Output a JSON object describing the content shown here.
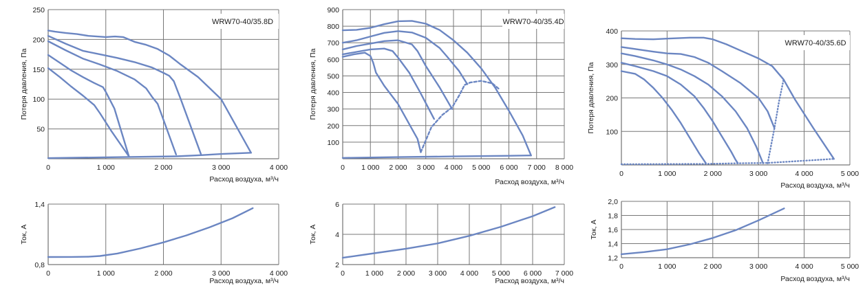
{
  "colors": {
    "curve": "#6b86c2",
    "grid": "#777777",
    "label_bg": "#ffffff"
  },
  "chart_data": [
    {
      "type": "line",
      "role": "pressure",
      "model": "WRW70-40/35.8D",
      "xlabel": "Расход воздуха, м³/ч",
      "ylabel": "Потеря давления, Па",
      "xlim": [
        0,
        4000
      ],
      "ylim": [
        0,
        250
      ],
      "grid": true,
      "xticks": [
        0,
        1000,
        2000,
        3000,
        4000
      ],
      "xtick_labels": [
        "0",
        "1 000",
        "2 000",
        "3 000",
        "4 000"
      ],
      "yticks": [
        50,
        100,
        150,
        200,
        250
      ],
      "ytick_labels": [
        "50",
        "100",
        "150",
        "200",
        "250"
      ],
      "series": [
        {
          "x": [
            0,
            120,
            300,
            500,
            700,
            1000,
            1160,
            1300,
            1400,
            1500,
            1700,
            1900,
            2100,
            2300,
            2600,
            3000,
            3520
          ],
          "y": [
            215,
            213,
            211,
            209,
            206,
            204,
            205,
            204,
            200,
            196,
            191,
            184,
            173,
            158,
            137,
            100,
            10
          ]
        },
        {
          "x": [
            0,
            300,
            600,
            900,
            1200,
            1500,
            1800,
            2000,
            2100,
            2180,
            2300,
            2650
          ],
          "y": [
            206,
            193,
            181,
            175,
            169,
            162,
            153,
            144,
            139,
            130,
            100,
            8
          ]
        },
        {
          "x": [
            0,
            300,
            600,
            900,
            1200,
            1500,
            1700,
            1800,
            1900,
            2220
          ],
          "y": [
            197,
            182,
            168,
            158,
            147,
            133,
            118,
            104,
            92,
            7
          ]
        },
        {
          "x": [
            0,
            200,
            400,
            600,
            800,
            950,
            1000,
            1150,
            1400
          ],
          "y": [
            174,
            161,
            148,
            137,
            127,
            120,
            112,
            84,
            4
          ]
        },
        {
          "x": [
            0,
            200,
            400,
            600,
            700,
            800,
            900,
            1100,
            1400
          ],
          "y": [
            152,
            137,
            121,
            106,
            98,
            90,
            76,
            46,
            4
          ]
        },
        {
          "x": [
            0,
            1400,
            2220,
            2650,
            3000,
            3520
          ],
          "y": [
            1,
            3,
            4,
            6,
            8,
            10
          ]
        }
      ]
    },
    {
      "type": "line",
      "role": "current",
      "xlabel": "Расход воздуха, м³/ч",
      "ylabel": "Ток, А",
      "xlim": [
        0,
        4000
      ],
      "ylim": [
        0.8,
        1.4
      ],
      "grid": true,
      "xticks": [
        0,
        1000,
        2000,
        3000,
        4000
      ],
      "xtick_labels": [
        "0",
        "1 000",
        "2 000",
        "3 000",
        "4 000"
      ],
      "yticks": [
        0.8,
        1.4
      ],
      "ytick_labels": [
        "0,8",
        "1,4"
      ],
      "series": [
        {
          "x": [
            0,
            400,
            700,
            900,
            1200,
            1600,
            2000,
            2400,
            2800,
            3200,
            3550
          ],
          "y": [
            0.875,
            0.876,
            0.878,
            0.885,
            0.91,
            0.96,
            1.02,
            1.09,
            1.17,
            1.26,
            1.36
          ]
        }
      ]
    },
    {
      "type": "line",
      "role": "pressure",
      "model": "WRW70-40/35.4D",
      "xlabel": "Расход воздуха, м³/ч",
      "ylabel": "Потеря давления, Па",
      "xlim": [
        0,
        8000
      ],
      "ylim": [
        0,
        900
      ],
      "grid": true,
      "xticks": [
        0,
        1000,
        2000,
        3000,
        4000,
        5000,
        6000,
        7000,
        8000
      ],
      "xtick_labels": [
        "0",
        "1 000",
        "2 000",
        "3 000",
        "4 000",
        "5 000",
        "6 000",
        "7 000",
        "8 000"
      ],
      "yticks": [
        100,
        200,
        300,
        400,
        500,
        600,
        700,
        800,
        900
      ],
      "ytick_labels": [
        "100",
        "200",
        "300",
        "400",
        "500",
        "600",
        "700",
        "800",
        "900"
      ],
      "series": [
        {
          "x": [
            0,
            500,
            1000,
            1500,
            2000,
            2500,
            3000,
            3500,
            4000,
            4500,
            5000,
            5500,
            6000,
            6500,
            6800
          ],
          "y": [
            775,
            778,
            790,
            812,
            830,
            832,
            815,
            777,
            715,
            640,
            545,
            430,
            290,
            140,
            20
          ]
        },
        {
          "x": [
            0,
            500,
            1000,
            1500,
            2000,
            2500,
            3000,
            3500,
            3800,
            4000,
            4200,
            4500
          ],
          "y": [
            700,
            715,
            738,
            760,
            770,
            762,
            730,
            668,
            610,
            570,
            530,
            450
          ]
        },
        {
          "x": [
            0,
            500,
            1000,
            1500,
            2000,
            2500,
            2700,
            3000,
            3500,
            3950
          ],
          "y": [
            660,
            680,
            695,
            710,
            715,
            690,
            650,
            560,
            430,
            300
          ]
        },
        {
          "x": [
            0,
            500,
            1000,
            1500,
            1800,
            2000,
            2400,
            2800,
            3300
          ],
          "y": [
            630,
            645,
            660,
            665,
            650,
            610,
            520,
            400,
            240
          ]
        },
        {
          "x": [
            0,
            400,
            800,
            1000,
            1100,
            1200,
            1500,
            2000,
            2500,
            2700,
            2820
          ],
          "y": [
            615,
            630,
            640,
            620,
            580,
            520,
            440,
            330,
            180,
            120,
            40
          ]
        },
        {
          "x": [
            2820,
            3200,
            3600,
            3950,
            4200,
            4400,
            4600,
            5000,
            5400,
            5650
          ],
          "y": [
            40,
            190,
            265,
            310,
            380,
            445,
            460,
            470,
            455,
            420
          ],
          "dash": [
            0.46,
            0.54
          ]
        },
        {
          "x": [
            0,
            2000,
            4000,
            6000,
            6800
          ],
          "y": [
            5,
            10,
            14,
            18,
            20
          ]
        }
      ]
    },
    {
      "type": "line",
      "role": "current",
      "xlabel": "Расход воздуха, м³/ч",
      "ylabel": "Ток, А",
      "xlim": [
        0,
        7000
      ],
      "ylim": [
        2,
        6
      ],
      "grid": true,
      "xticks": [
        0,
        1000,
        2000,
        3000,
        4000,
        5000,
        6000,
        7000
      ],
      "xtick_labels": [
        "0",
        "1 000",
        "2 000",
        "3 000",
        "4 000",
        "5 000",
        "6 000",
        "7 000"
      ],
      "yticks": [
        2,
        4,
        6
      ],
      "ytick_labels": [
        "2",
        "4",
        "6"
      ],
      "series": [
        {
          "x": [
            0,
            1000,
            2000,
            3000,
            4000,
            5000,
            6000,
            6700
          ],
          "y": [
            2.45,
            2.75,
            3.05,
            3.4,
            3.9,
            4.5,
            5.2,
            5.8
          ]
        }
      ]
    },
    {
      "type": "line",
      "role": "pressure",
      "model": "WRW70-40/35.6D",
      "xlabel": "Расход воздуха, м³/ч",
      "ylabel": "Потеря давления, Па",
      "xlim": [
        0,
        5000
      ],
      "ylim": [
        0,
        400
      ],
      "grid": true,
      "xticks": [
        0,
        1000,
        2000,
        3000,
        4000,
        5000
      ],
      "xtick_labels": [
        "0",
        "1 000",
        "2 000",
        "3 000",
        "4 000",
        "5 000"
      ],
      "yticks": [
        100,
        200,
        300,
        400
      ],
      "ytick_labels": [
        "100",
        "200",
        "300",
        "400"
      ],
      "series": [
        {
          "x": [
            0,
            300,
            700,
            1000,
            1500,
            1800,
            2000,
            2300,
            2600,
            3000,
            3300,
            3550,
            3800,
            4200,
            4650
          ],
          "y": [
            378,
            376,
            375,
            377,
            380,
            380,
            375,
            360,
            342,
            318,
            295,
            255,
            195,
            110,
            18
          ]
        },
        {
          "x": [
            0,
            300,
            700,
            1000,
            1300,
            1600,
            1900,
            2200,
            2600,
            3000,
            3200,
            3350
          ],
          "y": [
            352,
            346,
            338,
            333,
            331,
            322,
            305,
            280,
            245,
            200,
            160,
            110
          ]
        },
        {
          "x": [
            0,
            300,
            700,
            1000,
            1300,
            1600,
            1900,
            2200,
            2500,
            2750,
            2950,
            3100
          ],
          "y": [
            333,
            325,
            312,
            300,
            285,
            265,
            240,
            205,
            160,
            110,
            55,
            5
          ]
        },
        {
          "x": [
            0,
            300,
            700,
            1000,
            1300,
            1600,
            1800,
            2000,
            2200,
            2400,
            2500,
            2550
          ],
          "y": [
            305,
            295,
            280,
            265,
            240,
            205,
            170,
            130,
            85,
            40,
            15,
            5
          ]
        },
        {
          "x": [
            0,
            300,
            500,
            700,
            900,
            1100,
            1300,
            1500,
            1700,
            1850
          ],
          "y": [
            280,
            272,
            255,
            230,
            200,
            165,
            125,
            80,
            35,
            5
          ]
        },
        {
          "x": [
            3200,
            3350,
            3450,
            3550
          ],
          "y": [
            5,
            110,
            190,
            255
          ],
          "dash": [
            0.0,
            1.0
          ]
        },
        {
          "x": [
            0,
            1850,
            2550,
            3200,
            4650
          ],
          "y": [
            2,
            3,
            5,
            6,
            18
          ],
          "dash": [
            0.0,
            0.55
          ]
        }
      ]
    },
    {
      "type": "line",
      "role": "current",
      "xlabel": "Расход воздуха, м³/ч",
      "ylabel": "Ток, А",
      "xlim": [
        0,
        5000
      ],
      "ylim": [
        1.2,
        2.0
      ],
      "grid": true,
      "xticks": [
        0,
        1000,
        2000,
        3000,
        4000,
        5000
      ],
      "xtick_labels": [
        "0",
        "1 000",
        "2 000",
        "3 000",
        "4 000",
        "5 000"
      ],
      "yticks": [
        1.2,
        1.4,
        1.6,
        1.8,
        2.0
      ],
      "ytick_labels": [
        "1,2",
        "1,4",
        "1,6",
        "1,8",
        "2,0"
      ],
      "series": [
        {
          "x": [
            0,
            500,
            1000,
            1500,
            2000,
            2500,
            3000,
            3560
          ],
          "y": [
            1.25,
            1.28,
            1.32,
            1.39,
            1.48,
            1.59,
            1.73,
            1.9
          ]
        }
      ]
    }
  ]
}
